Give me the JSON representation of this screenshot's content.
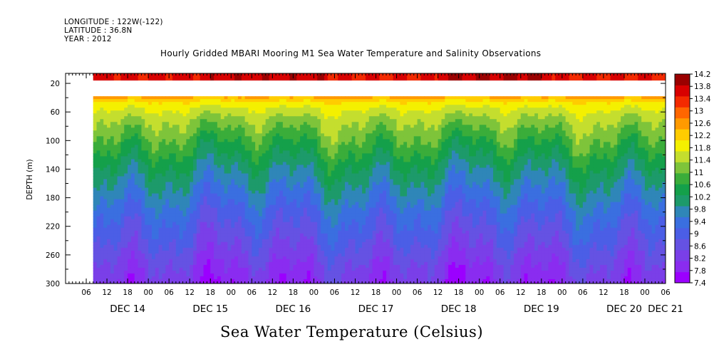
{
  "header": {
    "longitude": "LONGITUDE : 122W(-122)",
    "latitude": "LATITUDE : 36.8N",
    "year": "YEAR : 2012"
  },
  "chart_data": {
    "type": "heatmap",
    "title": "Hourly Gridded MBARI Mooring M1 Sea Water Temperature and Salinity Observations",
    "xlabel": "Sea Water Temperature (Celsius)",
    "ylabel": "DEPTH (m)",
    "x_unit": "hours since 2012-12-14 00:00",
    "xlim": [
      -24,
      150
    ],
    "ylim": [
      300,
      6
    ],
    "x_ticks": [
      -18,
      -12,
      -6,
      0,
      6,
      12,
      18,
      24,
      30,
      36,
      42,
      48,
      54,
      60,
      66,
      72,
      78,
      84,
      90,
      96,
      102,
      108,
      114,
      120,
      126,
      132,
      138,
      144,
      150
    ],
    "x_tick_labels": [
      "06",
      "12",
      "18",
      "00",
      "06",
      "12",
      "18",
      "00",
      "06",
      "12",
      "18",
      "00",
      "06",
      "12",
      "18",
      "00",
      "06",
      "12",
      "18",
      "00",
      "06",
      "12",
      "18",
      "00",
      "06",
      "12",
      "18",
      "00",
      "06"
    ],
    "day_labels": [
      {
        "x": -6,
        "label": "DEC 14"
      },
      {
        "x": 18,
        "label": "DEC 15"
      },
      {
        "x": 42,
        "label": "DEC 16"
      },
      {
        "x": 66,
        "label": "DEC 17"
      },
      {
        "x": 90,
        "label": "DEC 18"
      },
      {
        "x": 114,
        "label": "DEC 19"
      },
      {
        "x": 138,
        "label": "DEC 20"
      },
      {
        "x": 150,
        "label": "DEC 21"
      }
    ],
    "y_ticks": [
      20,
      60,
      100,
      140,
      180,
      220,
      260,
      300
    ],
    "data_x_range": [
      -16,
      150
    ],
    "surface_band_depth": [
      6,
      16
    ],
    "gap_depth": [
      16,
      38
    ],
    "colorbar": {
      "levels": [
        7.4,
        7.8,
        8.2,
        8.6,
        9,
        9.4,
        9.8,
        10.2,
        10.6,
        11,
        11.4,
        11.8,
        12.2,
        12.6,
        13,
        13.4,
        13.8,
        14.2
      ],
      "labels": [
        "14.2",
        "13.8",
        "13.4",
        "13",
        "12.6",
        "12.2",
        "11.8",
        "11.4",
        "11",
        "10.6",
        "10.2",
        "9.8",
        "9.4",
        "9",
        "8.6",
        "8.2",
        "7.8",
        "7.4"
      ],
      "colors": [
        "#9b00ff",
        "#8a2cf0",
        "#7a3fe8",
        "#6552e3",
        "#4b5ee6",
        "#3a6fe0",
        "#2f86b8",
        "#1d9a6a",
        "#14a04a",
        "#3aad3a",
        "#7ec43a",
        "#c4de2e",
        "#f4f000",
        "#ffcc00",
        "#ff9a00",
        "#ff6600",
        "#f32a00",
        "#d80000",
        "#9a0000"
      ]
    },
    "temperature_profile": {
      "depths": [
        38,
        45,
        55,
        70,
        90,
        110,
        140,
        170,
        200,
        230,
        260,
        280,
        300
      ],
      "temps": [
        12.8,
        12.2,
        11.8,
        11.4,
        11.0,
        10.6,
        10.0,
        9.5,
        9.0,
        8.6,
        8.2,
        7.9,
        7.7
      ]
    },
    "surface_temps": [
      13.9,
      14.1,
      13.8,
      14.2,
      13.8
    ]
  }
}
